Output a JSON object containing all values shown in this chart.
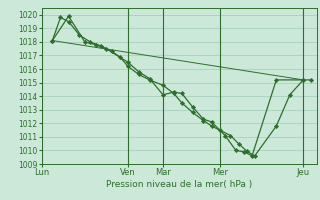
{
  "background_color": "#cce8d8",
  "grid_color": "#aacfbe",
  "line_color": "#2d6e2d",
  "marker_color": "#2d6e2d",
  "xlabel": "Pression niveau de la mer( hPa )",
  "ylim": [
    1009,
    1020.5
  ],
  "yticks": [
    1009,
    1010,
    1011,
    1012,
    1013,
    1014,
    1015,
    1016,
    1017,
    1018,
    1019,
    1020
  ],
  "day_labels": [
    "Lun",
    "Ven",
    "Mar",
    "Mer",
    "Jeu"
  ],
  "day_positions": [
    0.0,
    0.32,
    0.45,
    0.66,
    0.97
  ],
  "series": [
    {
      "x": [
        0.04,
        0.1,
        0.16,
        0.2,
        0.24,
        0.32,
        0.36,
        0.4,
        0.45,
        0.49,
        0.52,
        0.56,
        0.6,
        0.63,
        0.68,
        0.72,
        0.75,
        0.78,
        0.87,
        0.97,
        1.0
      ],
      "y": [
        1018.1,
        1019.9,
        1018.0,
        1017.8,
        1017.5,
        1016.5,
        1015.8,
        1015.3,
        1014.1,
        1014.3,
        1014.2,
        1013.2,
        1012.3,
        1012.1,
        1011.1,
        1010.0,
        1009.9,
        1009.6,
        1015.2,
        1015.2,
        1015.2
      ]
    },
    {
      "x": [
        0.04,
        0.07,
        0.1,
        0.14,
        0.18,
        0.22,
        0.26,
        0.29,
        0.32,
        0.36,
        0.4,
        0.45,
        0.49,
        0.52,
        0.56,
        0.6,
        0.63,
        0.66,
        0.7,
        0.73,
        0.76,
        0.79,
        0.87,
        0.92,
        0.97
      ],
      "y": [
        1018.1,
        1019.8,
        1019.5,
        1018.5,
        1018.0,
        1017.7,
        1017.3,
        1016.9,
        1016.2,
        1015.6,
        1015.2,
        1014.8,
        1014.2,
        1013.5,
        1012.8,
        1012.2,
        1011.8,
        1011.5,
        1011.1,
        1010.5,
        1009.95,
        1009.6,
        1011.8,
        1014.1,
        1015.2
      ]
    },
    {
      "x": [
        0.04,
        0.97
      ],
      "y": [
        1018.1,
        1015.2
      ]
    }
  ]
}
